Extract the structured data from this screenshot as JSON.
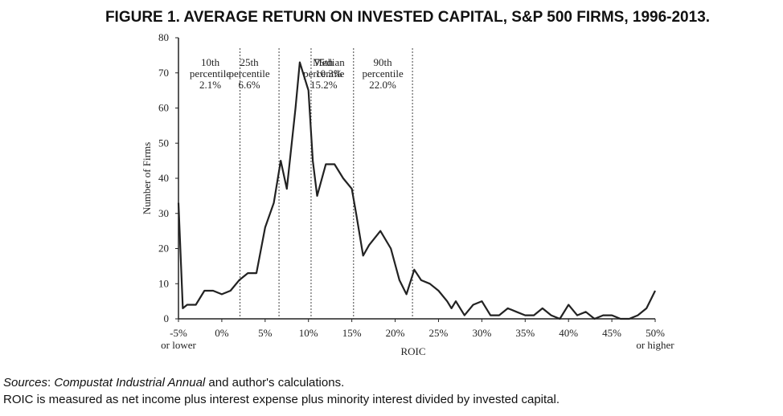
{
  "chart_data": {
    "type": "line",
    "title": "FIGURE 1. AVERAGE RETURN ON INVESTED CAPITAL, S&P 500 FIRMS, 1996-2013.",
    "xlabel": "ROIC",
    "ylabel": "Number of Firms",
    "xlim": [
      -5,
      50
    ],
    "ylim": [
      0,
      80
    ],
    "xticks": [
      {
        "value": -5,
        "label": "-5%"
      },
      {
        "value": 0,
        "label": "0%"
      },
      {
        "value": 5,
        "label": "5%"
      },
      {
        "value": 10,
        "label": "10%"
      },
      {
        "value": 15,
        "label": "15%"
      },
      {
        "value": 20,
        "label": "20%"
      },
      {
        "value": 25,
        "label": "25%"
      },
      {
        "value": 30,
        "label": "30%"
      },
      {
        "value": 35,
        "label": "35%"
      },
      {
        "value": 40,
        "label": "40%"
      },
      {
        "value": 45,
        "label": "45%"
      },
      {
        "value": 50,
        "label": "50%"
      }
    ],
    "xtick_sublabels": [
      {
        "value": -5,
        "label": "or lower"
      },
      {
        "value": 50,
        "label": "or higher"
      }
    ],
    "yticks": [
      0,
      10,
      20,
      30,
      40,
      50,
      60,
      70,
      80
    ],
    "x": [
      -5,
      -4.5,
      -4,
      -3,
      -2,
      -1,
      0,
      1,
      2,
      3,
      4,
      5,
      6,
      6.8,
      7.5,
      8.5,
      9,
      10,
      10.5,
      11,
      12,
      13,
      14,
      15,
      15.5,
      16.3,
      17,
      18.3,
      19.5,
      20.5,
      21.3,
      22.2,
      23,
      24,
      25,
      26,
      26.5,
      27,
      28,
      29,
      30,
      31,
      32,
      33,
      34,
      35,
      36,
      37,
      38,
      39,
      40,
      41,
      42,
      43,
      44,
      45,
      46,
      47,
      48,
      49,
      50
    ],
    "series": [
      {
        "color": "#222222",
        "values": [
          33,
          3,
          4,
          4,
          8,
          8,
          7,
          8,
          11,
          13,
          13,
          26,
          33,
          45,
          37,
          60,
          73,
          65,
          45,
          35,
          44,
          44,
          40,
          37,
          30,
          18,
          21,
          25,
          20,
          11,
          7,
          14,
          11,
          10,
          8,
          5,
          3,
          5,
          1,
          4,
          5,
          1,
          1,
          3,
          2,
          1,
          1,
          3,
          1,
          0,
          4,
          1,
          2,
          0,
          1,
          1,
          0,
          0,
          1,
          3,
          8
        ]
      }
    ],
    "markers": [
      {
        "value": 2.1,
        "lines": [
          "10th",
          "percentile",
          "2.1%"
        ]
      },
      {
        "value": 6.6,
        "lines": [
          "25th",
          "percentile",
          "6.6%"
        ]
      },
      {
        "value": 10.3,
        "lines": [
          "Median",
          "10.3%"
        ]
      },
      {
        "value": 15.2,
        "lines": [
          "75th",
          "percentile",
          "15.2%"
        ]
      },
      {
        "value": 22.0,
        "lines": [
          "90th",
          "percentile",
          "22.0%"
        ]
      }
    ],
    "sources": [
      {
        "text": "Sources",
        "italic": true
      },
      {
        "text": ": ",
        "italic": false
      },
      {
        "text": "Compustat Industrial Annual",
        "italic": true
      },
      {
        "text": " and author's calculations.",
        "italic": false
      }
    ],
    "note": "ROIC is measured as net income plus interest expense plus minority interest divided by invested capital."
  }
}
